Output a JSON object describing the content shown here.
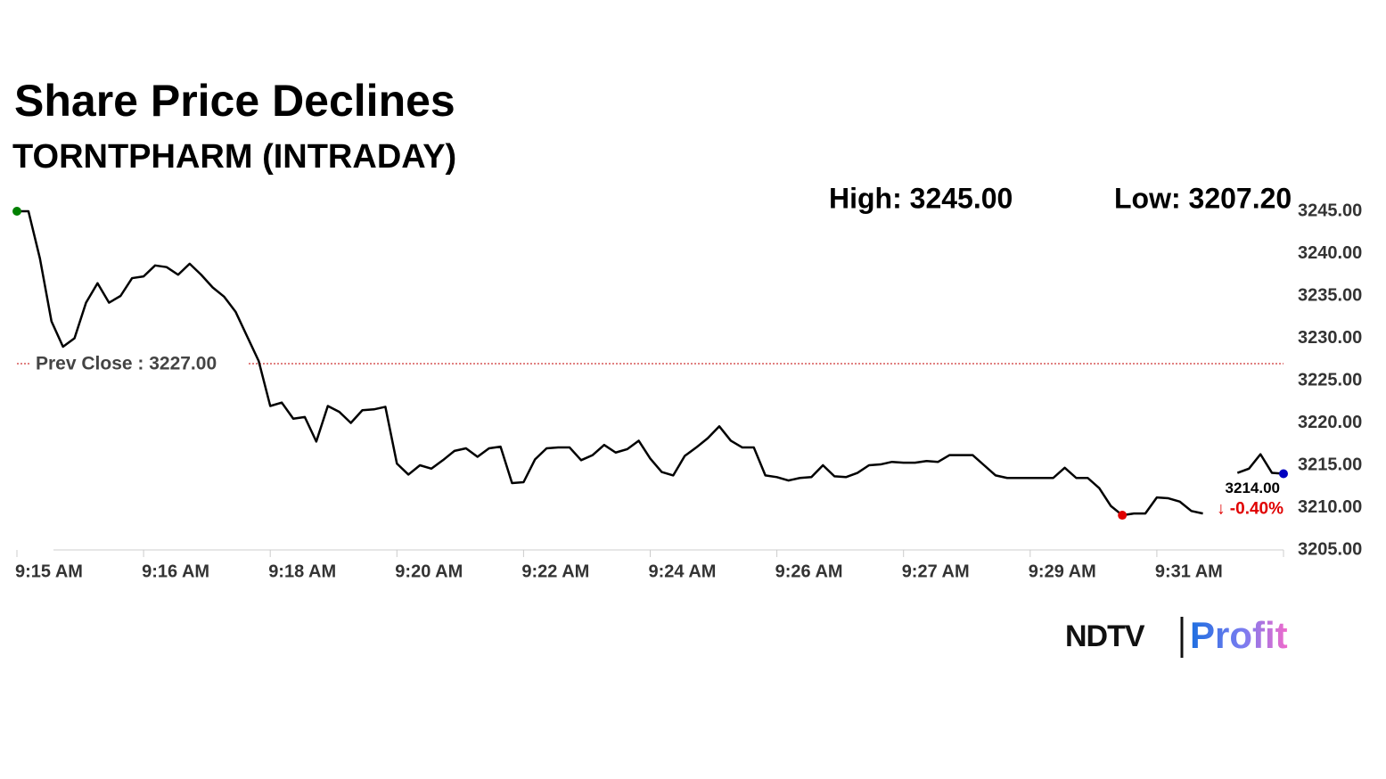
{
  "chart_data": {
    "type": "line",
    "title": "Share Price Declines",
    "subtitle": "TORNTPHARM (INTRADAY)",
    "high_label": "High: 3245.00",
    "low_label": "Low: 3207.20",
    "prev_close": {
      "value": 3227,
      "label": "Prev Close : 3227.00",
      "color": "#c00000"
    },
    "end_label": {
      "value": "3214.00",
      "change": "↓ -0.40%",
      "change_color": "#e00000"
    },
    "categories": [
      "9:15 AM",
      null,
      null,
      null,
      null,
      null,
      null,
      null,
      null,
      null,
      null,
      "9:16 AM",
      null,
      null,
      null,
      null,
      null,
      null,
      null,
      null,
      null,
      null,
      "9:18 AM",
      null,
      null,
      null,
      null,
      null,
      null,
      null,
      null,
      null,
      null,
      "9:20 AM",
      null,
      null,
      null,
      null,
      null,
      null,
      null,
      null,
      null,
      null,
      "9:22 AM",
      null,
      null,
      null,
      null,
      null,
      null,
      null,
      null,
      null,
      null,
      "9:24 AM",
      null,
      null,
      null,
      null,
      null,
      null,
      null,
      null,
      null,
      null,
      "9:26 AM",
      null,
      null,
      null,
      null,
      null,
      null,
      null,
      null,
      null,
      null,
      "9:27 AM",
      null,
      null,
      null,
      null,
      null,
      null,
      null,
      null,
      null,
      null,
      "9:29 AM",
      null,
      null,
      null,
      null,
      null,
      null,
      null,
      null,
      null,
      null,
      "9:31 AM",
      null,
      null,
      null,
      null,
      null,
      null,
      null,
      null,
      null,
      null,
      null
    ],
    "series": [
      {
        "name": "TORNTPHARM",
        "color": "#000000",
        "values": [
          3245,
          3245,
          3239.4,
          3232,
          3229,
          3230,
          3234.2,
          3236.5,
          3234.2,
          3235,
          3237.1,
          3237.3,
          3238.6,
          3238.4,
          3237.5,
          3238.8,
          3237.5,
          3236,
          3234.9,
          3233.1,
          3230.2,
          3227.3,
          3222,
          3222.4,
          3220.5,
          3220.7,
          3217.8,
          3222,
          3221.3,
          3220,
          3221.5,
          3221.6,
          3221.9,
          3215.2,
          3213.9,
          3215,
          3214.6,
          3215.6,
          3216.7,
          3217,
          3216,
          3217,
          3217.2,
          3212.9,
          3213,
          3215.7,
          3217,
          3217.1,
          3217.1,
          3215.6,
          3216.2,
          3217.4,
          3216.5,
          3216.9,
          3217.9,
          3215.8,
          3214.2,
          3213.8,
          3216.1,
          3217.1,
          3218.2,
          3219.6,
          3217.9,
          3217.1,
          3217.1,
          3213.8,
          3213.6,
          3213.2,
          3213.5,
          3213.6,
          3215,
          3213.7,
          3213.6,
          3214.1,
          3215,
          3215.1,
          3215.4,
          3215.3,
          3215.3,
          3215.5,
          3215.4,
          3216.2,
          3216.2,
          3216.2,
          3215,
          3213.8,
          3213.5,
          3213.5,
          3213.5,
          3213.5,
          3213.5,
          3214.7,
          3213.5,
          3213.5,
          3212.3,
          3210.2,
          3209.1,
          3209.3,
          3209.3,
          3211.2,
          3211.1,
          3210.7,
          3209.6,
          3209.3,
          null,
          null,
          3214.1,
          3214.6,
          3216.3,
          3214.1,
          3214
        ]
      }
    ],
    "start_color": "#008000",
    "low_color": "#e00000",
    "end_color": "#0000c0",
    "low_index": 96,
    "ylim": [
      3205,
      3245
    ],
    "yticks": [
      {
        "value": 3245,
        "label": "3245.00"
      },
      {
        "value": 3240,
        "label": "3240.00"
      },
      {
        "value": 3235,
        "label": "3235.00"
      },
      {
        "value": 3230,
        "label": "3230.00"
      },
      {
        "value": 3225,
        "label": "3225.00"
      },
      {
        "value": 3220,
        "label": "3220.00"
      },
      {
        "value": 3215,
        "label": "3215.00"
      },
      {
        "value": 3210,
        "label": "3210.00"
      },
      {
        "value": 3205,
        "label": "3205.00"
      }
    ],
    "grid": false
  },
  "branding": {
    "name": "NDTV",
    "product": "Profit"
  }
}
